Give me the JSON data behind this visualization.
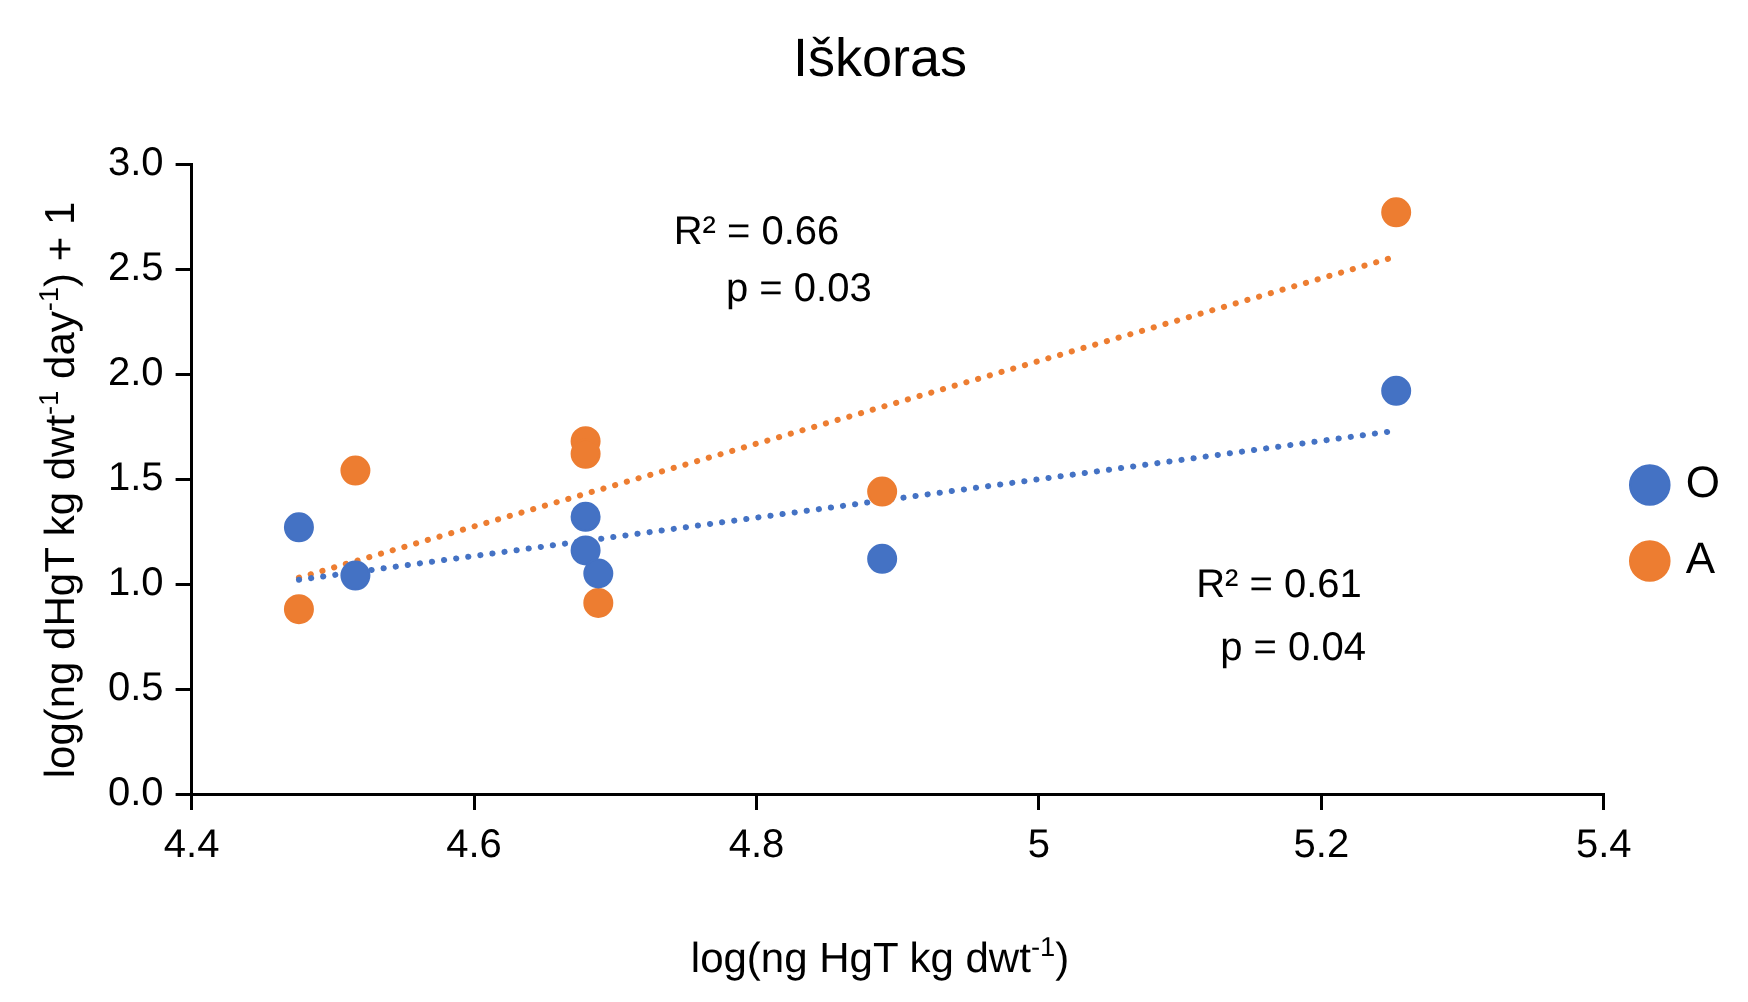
{
  "chart_data": {
    "type": "scatter",
    "title": "Iškoras",
    "xlabel": "log(ng HgT kg dwt$^{-1}$)",
    "ylabel": "log(ng dHgT kg dwt$^{-1}$ day$^{-1}$) + 1",
    "xlim": [
      4.4,
      5.4
    ],
    "xticks": [
      4.4,
      4.6,
      4.8,
      5,
      5.2,
      5.4
    ],
    "ylim": [
      0,
      3
    ],
    "yticks": [
      {
        "value": 0,
        "label": "0.0"
      },
      {
        "value": 0.5,
        "label": "0.5"
      },
      {
        "value": 1,
        "label": "1.0"
      },
      {
        "value": 1.5,
        "label": "1.5"
      },
      {
        "value": 2,
        "label": "2.0"
      },
      {
        "value": 2.5,
        "label": "2.5"
      },
      {
        "value": 3,
        "label": "3.0"
      }
    ],
    "grid": false,
    "legend": "right",
    "marker": "circle",
    "series": [
      {
        "name": "O",
        "color": "#4472c4",
        "x": [
          4.476,
          4.516,
          4.679,
          4.679,
          4.688,
          4.889,
          5.253
        ],
        "values": [
          1.27,
          1.04,
          1.32,
          1.16,
          1.05,
          1.12,
          1.92
        ]
      },
      {
        "name": "A",
        "color": "#ed7d31",
        "x": [
          4.476,
          4.516,
          4.679,
          4.679,
          4.688,
          4.889,
          5.253
        ],
        "values": [
          0.88,
          1.54,
          1.68,
          1.62,
          0.91,
          1.44,
          2.77
        ]
      },
      {
        "type": "line",
        "color": "#4472c4",
        "line_style": "dotted",
        "marker": "none",
        "x": [
          4.476,
          5.253
        ],
        "values": [
          1.02,
          1.73
        ]
      },
      {
        "type": "line",
        "color": "#ed7d31",
        "line_style": "dotted",
        "marker": "none",
        "x": [
          4.476,
          5.253
        ],
        "values": [
          1.03,
          2.56
        ]
      }
    ],
    "annotations": [
      "R² = 0.66",
      "p = 0.03",
      "R² = 0.61",
      "p = 0.04"
    ]
  }
}
